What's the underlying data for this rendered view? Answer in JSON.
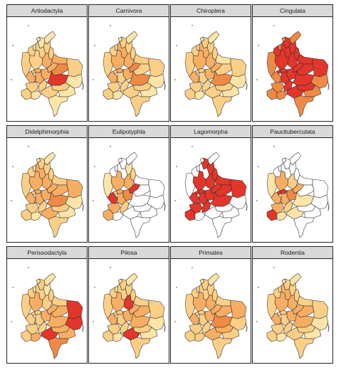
{
  "colors": {
    "none": "#ffffff",
    "low": "#fde4a8",
    "midlow": "#fbcf86",
    "mid": "#f7ae63",
    "midhigh": "#ef8a46",
    "high": "#e2362b"
  },
  "panels": [
    {
      "title": "Artiodactyla",
      "levels": {
        "guajira": 1,
        "atlantico": 1,
        "magdalena": 1,
        "cesar": 2,
        "bolivar": 2,
        "sucre": 1,
        "cordoba": 2,
        "antioquia": 2,
        "norte_santander": 2,
        "santander": 3,
        "arauca": 3,
        "boyaca": 3,
        "casanare": 4,
        "choco": 2,
        "risaralda": 2,
        "caldas": 3,
        "cundinamarca": 3,
        "vichada": 2,
        "valle": 3,
        "tolima": 3,
        "meta": 5,
        "cauca": 2,
        "huila": 2,
        "guaviare": 2,
        "guainia": 1,
        "narino": 2,
        "putumayo": 1,
        "caqueta": 2,
        "vaupes": 1,
        "amazonas": 1
      }
    },
    {
      "title": "Carnivora",
      "levels": {
        "guajira": 1,
        "atlantico": 1,
        "magdalena": 2,
        "cesar": 2,
        "bolivar": 3,
        "sucre": 1,
        "cordoba": 2,
        "antioquia": 3,
        "norte_santander": 2,
        "santander": 3,
        "arauca": 2,
        "boyaca": 4,
        "casanare": 2,
        "choco": 2,
        "risaralda": 2,
        "caldas": 3,
        "cundinamarca": 3,
        "vichada": 2,
        "valle": 3,
        "tolima": 2,
        "meta": 4,
        "cauca": 2,
        "huila": 2,
        "guaviare": 2,
        "guainia": 1,
        "narino": 2,
        "putumayo": 1,
        "caqueta": 2,
        "vaupes": 1,
        "amazonas": 2
      }
    },
    {
      "title": "Chiroptera",
      "levels": {
        "guajira": 1,
        "atlantico": 1,
        "magdalena": 2,
        "cesar": 2,
        "bolivar": 3,
        "sucre": 1,
        "cordoba": 2,
        "antioquia": 3,
        "norte_santander": 2,
        "santander": 3,
        "arauca": 1,
        "boyaca": 3,
        "casanare": 2,
        "choco": 2,
        "risaralda": 2,
        "caldas": 2,
        "cundinamarca": 3,
        "vichada": 2,
        "valle": 3,
        "tolima": 2,
        "meta": 4,
        "cauca": 2,
        "huila": 2,
        "guaviare": 2,
        "guainia": 1,
        "narino": 2,
        "putumayo": 1,
        "caqueta": 2,
        "vaupes": 1,
        "amazonas": 2
      }
    },
    {
      "title": "Cingulata",
      "levels": {
        "guajira": 4,
        "atlantico": 4,
        "magdalena": 5,
        "cesar": 5,
        "bolivar": 5,
        "sucre": 4,
        "cordoba": 5,
        "antioquia": 5,
        "norte_santander": 5,
        "santander": 5,
        "arauca": 5,
        "boyaca": 5,
        "casanare": 5,
        "choco": 4,
        "risaralda": 5,
        "caldas": 5,
        "cundinamarca": 5,
        "vichada": 5,
        "valle": 4,
        "tolima": 5,
        "meta": 5,
        "cauca": 4,
        "huila": 5,
        "guaviare": 5,
        "guainia": 4,
        "narino": 4,
        "putumayo": 4,
        "caqueta": 5,
        "vaupes": 4,
        "amazonas": 4
      }
    },
    {
      "title": "Didelphimorphia",
      "levels": {
        "guajira": 1,
        "atlantico": 1,
        "magdalena": 2,
        "cesar": 2,
        "bolivar": 3,
        "sucre": 1,
        "cordoba": 2,
        "antioquia": 3,
        "norte_santander": 2,
        "santander": 3,
        "arauca": 2,
        "boyaca": 3,
        "casanare": 3,
        "choco": 2,
        "risaralda": 2,
        "caldas": 3,
        "cundinamarca": 3,
        "vichada": 3,
        "valle": 3,
        "tolima": 3,
        "meta": 4,
        "cauca": 2,
        "huila": 2,
        "guaviare": 2,
        "guainia": 1,
        "narino": 2,
        "putumayo": 1,
        "caqueta": 3,
        "vaupes": 1,
        "amazonas": 2
      }
    },
    {
      "title": "Eulipotyphla",
      "levels": {
        "guajira": 0,
        "atlantico": 0,
        "magdalena": 0,
        "cesar": 1,
        "bolivar": 0,
        "sucre": 0,
        "cordoba": 0,
        "antioquia": 3,
        "norte_santander": 2,
        "santander": 3,
        "arauca": 0,
        "boyaca": 5,
        "casanare": 0,
        "choco": 1,
        "risaralda": 2,
        "caldas": 3,
        "cundinamarca": 4,
        "vichada": 0,
        "valle": 5,
        "tolima": 3,
        "meta": 0,
        "cauca": 3,
        "huila": 2,
        "guaviare": 0,
        "guainia": 0,
        "narino": 3,
        "putumayo": 0,
        "caqueta": 0,
        "vaupes": 0,
        "amazonas": 0
      }
    },
    {
      "title": "Lagomorpha",
      "levels": {
        "guajira": 0,
        "atlantico": 0,
        "magdalena": 5,
        "cesar": 5,
        "bolivar": 0,
        "sucre": 0,
        "cordoba": 0,
        "antioquia": 5,
        "norte_santander": 5,
        "santander": 5,
        "arauca": 5,
        "boyaca": 5,
        "casanare": 5,
        "choco": 0,
        "risaralda": 5,
        "caldas": 5,
        "cundinamarca": 5,
        "vichada": 5,
        "valle": 5,
        "tolima": 5,
        "meta": 5,
        "cauca": 5,
        "huila": 5,
        "guaviare": 0,
        "guainia": 0,
        "narino": 5,
        "putumayo": 0,
        "caqueta": 0,
        "vaupes": 0,
        "amazonas": 0
      }
    },
    {
      "title": "Paucituberculata",
      "levels": {
        "guajira": 0,
        "atlantico": 0,
        "magdalena": 0,
        "cesar": 0,
        "bolivar": 0,
        "sucre": 0,
        "cordoba": 0,
        "antioquia": 3,
        "norte_santander": 0,
        "santander": 2,
        "arauca": 0,
        "boyaca": 3,
        "casanare": 0,
        "choco": 1,
        "risaralda": 5,
        "caldas": 5,
        "cundinamarca": 4,
        "vichada": 0,
        "valle": 3,
        "tolima": 3,
        "meta": 1,
        "cauca": 3,
        "huila": 2,
        "guaviare": 0,
        "guainia": 0,
        "narino": 5,
        "putumayo": 1,
        "caqueta": 1,
        "vaupes": 0,
        "amazonas": 0
      }
    },
    {
      "title": "Perissodactyla",
      "levels": {
        "guajira": 1,
        "atlantico": 1,
        "magdalena": 2,
        "cesar": 1,
        "bolivar": 2,
        "sucre": 1,
        "cordoba": 2,
        "antioquia": 3,
        "norte_santander": 2,
        "santander": 2,
        "arauca": 2,
        "boyaca": 3,
        "casanare": 3,
        "choco": 2,
        "risaralda": 2,
        "caldas": 2,
        "cundinamarca": 3,
        "vichada": 5,
        "valle": 2,
        "tolima": 2,
        "meta": 3,
        "cauca": 2,
        "huila": 2,
        "guaviare": 3,
        "guainia": 5,
        "narino": 2,
        "putumayo": 3,
        "caqueta": 5,
        "vaupes": 3,
        "amazonas": 4
      }
    },
    {
      "title": "Pilosa",
      "levels": {
        "guajira": 1,
        "atlantico": 1,
        "magdalena": 2,
        "cesar": 2,
        "bolivar": 2,
        "sucre": 1,
        "cordoba": 2,
        "antioquia": 3,
        "norte_santander": 2,
        "santander": 5,
        "arauca": 2,
        "boyaca": 3,
        "casanare": 3,
        "choco": 2,
        "risaralda": 2,
        "caldas": 2,
        "cundinamarca": 3,
        "vichada": 2,
        "valle": 3,
        "tolima": 2,
        "meta": 3,
        "cauca": 2,
        "huila": 2,
        "guaviare": 2,
        "guainia": 1,
        "narino": 2,
        "putumayo": 1,
        "caqueta": 5,
        "vaupes": 1,
        "amazonas": 2
      }
    },
    {
      "title": "Primates",
      "levels": {
        "guajira": 1,
        "atlantico": 1,
        "magdalena": 2,
        "cesar": 2,
        "bolivar": 2,
        "sucre": 1,
        "cordoba": 2,
        "antioquia": 3,
        "norte_santander": 2,
        "santander": 3,
        "arauca": 2,
        "boyaca": 3,
        "casanare": 3,
        "choco": 2,
        "risaralda": 2,
        "caldas": 2,
        "cundinamarca": 3,
        "vichada": 3,
        "valle": 3,
        "tolima": 2,
        "meta": 4,
        "cauca": 2,
        "huila": 2,
        "guaviare": 3,
        "guainia": 2,
        "narino": 2,
        "putumayo": 2,
        "caqueta": 3,
        "vaupes": 2,
        "amazonas": 2
      }
    },
    {
      "title": "Rodentia",
      "levels": {
        "guajira": 1,
        "atlantico": 1,
        "magdalena": 2,
        "cesar": 2,
        "bolivar": 3,
        "sucre": 1,
        "cordoba": 2,
        "antioquia": 3,
        "norte_santander": 2,
        "santander": 3,
        "arauca": 2,
        "boyaca": 3,
        "casanare": 3,
        "choco": 2,
        "risaralda": 2,
        "caldas": 2,
        "cundinamarca": 3,
        "vichada": 2,
        "valle": 3,
        "tolima": 2,
        "meta": 3,
        "cauca": 2,
        "huila": 2,
        "guaviare": 2,
        "guainia": 1,
        "narino": 2,
        "putumayo": 1,
        "caqueta": 2,
        "vaupes": 1,
        "amazonas": 2
      }
    }
  ]
}
